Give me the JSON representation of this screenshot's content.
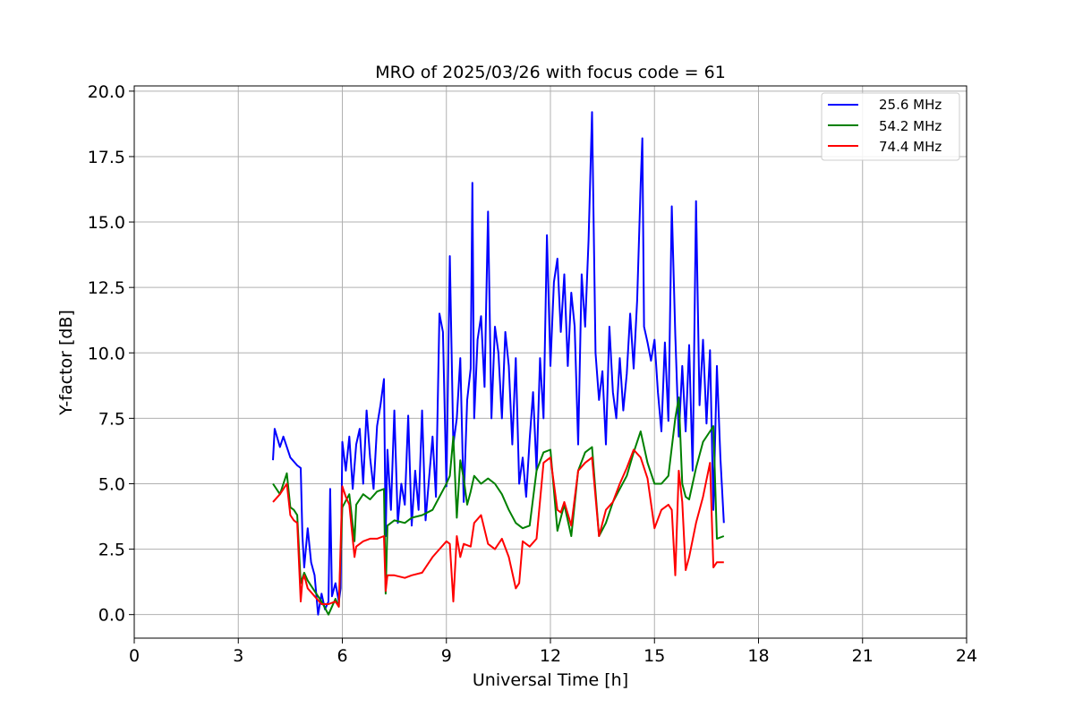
{
  "chart_data": {
    "type": "line",
    "title": "MRO of 2025/03/26 with focus code = 61",
    "xlabel": "Universal Time [h]",
    "ylabel": "Y-factor [dB]",
    "xlim": [
      0,
      24
    ],
    "ylim": [
      -0.9,
      20.2
    ],
    "xticks": [
      0,
      3,
      6,
      9,
      12,
      15,
      18,
      21,
      24
    ],
    "yticks": [
      0.0,
      2.5,
      5.0,
      7.5,
      10.0,
      12.5,
      15.0,
      17.5,
      20.0
    ],
    "xtick_labels": [
      "0",
      "3",
      "6",
      "9",
      "12",
      "15",
      "18",
      "21",
      "24"
    ],
    "ytick_labels": [
      "0.0",
      "2.5",
      "5.0",
      "7.5",
      "10.0",
      "12.5",
      "15.0",
      "17.5",
      "20.0"
    ],
    "grid": true,
    "legend_position": "top-right",
    "series": [
      {
        "name": "25.6 MHz",
        "color": "#0000ff",
        "x": [
          4.0,
          4.05,
          4.2,
          4.3,
          4.5,
          4.7,
          4.8,
          4.85,
          4.9,
          5.0,
          5.1,
          5.2,
          5.3,
          5.4,
          5.5,
          5.6,
          5.65,
          5.7,
          5.8,
          5.9,
          5.95,
          6.0,
          6.1,
          6.2,
          6.3,
          6.4,
          6.5,
          6.6,
          6.7,
          6.8,
          6.9,
          7.0,
          7.1,
          7.2,
          7.25,
          7.3,
          7.4,
          7.5,
          7.6,
          7.7,
          7.8,
          7.9,
          8.0,
          8.1,
          8.2,
          8.3,
          8.4,
          8.5,
          8.6,
          8.7,
          8.8,
          8.9,
          9.0,
          9.1,
          9.2,
          9.3,
          9.4,
          9.5,
          9.6,
          9.7,
          9.75,
          9.8,
          9.9,
          10.0,
          10.1,
          10.2,
          10.3,
          10.4,
          10.5,
          10.6,
          10.7,
          10.8,
          10.9,
          11.0,
          11.1,
          11.2,
          11.3,
          11.4,
          11.5,
          11.6,
          11.7,
          11.8,
          11.9,
          12.0,
          12.1,
          12.2,
          12.3,
          12.4,
          12.5,
          12.6,
          12.7,
          12.8,
          12.9,
          13.0,
          13.1,
          13.2,
          13.3,
          13.4,
          13.5,
          13.6,
          13.7,
          13.8,
          13.9,
          14.0,
          14.1,
          14.2,
          14.3,
          14.4,
          14.5,
          14.6,
          14.65,
          14.7,
          14.8,
          14.9,
          15.0,
          15.1,
          15.2,
          15.3,
          15.4,
          15.5,
          15.6,
          15.7,
          15.8,
          15.9,
          16.0,
          16.1,
          16.2,
          16.3,
          16.4,
          16.5,
          16.6,
          16.7,
          16.8,
          16.9,
          17.0
        ],
        "y": [
          5.9,
          7.1,
          6.4,
          6.8,
          6.0,
          5.7,
          5.6,
          3.0,
          1.8,
          3.3,
          2.0,
          1.5,
          0.0,
          0.8,
          0.2,
          0.5,
          4.8,
          0.7,
          1.2,
          0.5,
          1.0,
          6.6,
          5.5,
          6.8,
          4.8,
          6.5,
          7.1,
          5.0,
          7.8,
          6.0,
          4.8,
          7.2,
          8.0,
          9.0,
          3.0,
          6.3,
          4.0,
          7.8,
          3.5,
          5.0,
          4.2,
          7.6,
          3.4,
          5.5,
          4.0,
          7.8,
          3.6,
          5.2,
          6.8,
          4.5,
          11.5,
          10.8,
          4.9,
          13.7,
          6.5,
          7.5,
          9.8,
          4.3,
          8.2,
          9.4,
          16.5,
          7.5,
          10.5,
          11.4,
          8.7,
          15.4,
          7.5,
          11.0,
          10.0,
          7.5,
          10.8,
          9.5,
          6.5,
          9.8,
          5.0,
          6.0,
          4.5,
          6.7,
          8.5,
          5.5,
          9.8,
          7.5,
          14.5,
          9.5,
          12.7,
          13.6,
          10.8,
          13.0,
          9.5,
          12.3,
          11.0,
          6.5,
          13.0,
          11.0,
          14.3,
          19.2,
          10.0,
          8.2,
          9.3,
          6.5,
          11.0,
          8.5,
          7.5,
          9.8,
          7.8,
          9.2,
          11.5,
          9.4,
          12.0,
          16.4,
          18.2,
          11.0,
          10.4,
          9.7,
          10.5,
          8.5,
          7.0,
          10.4,
          7.4,
          15.6,
          10.7,
          6.8,
          9.5,
          7.0,
          10.3,
          5.5,
          15.8,
          8.0,
          10.5,
          7.3,
          10.1,
          4.0,
          9.5,
          6.0,
          3.5
        ]
      },
      {
        "name": "54.2 MHz",
        "color": "#008000",
        "x": [
          4.0,
          4.2,
          4.4,
          4.5,
          4.6,
          4.7,
          4.8,
          4.9,
          5.0,
          5.2,
          5.4,
          5.6,
          5.8,
          5.9,
          6.0,
          6.2,
          6.35,
          6.4,
          6.6,
          6.8,
          7.0,
          7.2,
          7.25,
          7.3,
          7.5,
          7.8,
          8.0,
          8.3,
          8.6,
          8.8,
          9.0,
          9.1,
          9.2,
          9.3,
          9.4,
          9.5,
          9.6,
          9.7,
          9.8,
          10.0,
          10.2,
          10.4,
          10.6,
          10.8,
          11.0,
          11.2,
          11.4,
          11.6,
          11.8,
          12.0,
          12.2,
          12.3,
          12.4,
          12.6,
          12.8,
          13.0,
          13.2,
          13.4,
          13.6,
          13.8,
          14.0,
          14.2,
          14.4,
          14.6,
          14.8,
          15.0,
          15.2,
          15.4,
          15.6,
          15.7,
          15.8,
          15.9,
          16.0,
          16.2,
          16.4,
          16.6,
          16.7,
          16.8,
          17.0
        ],
        "y": [
          5.0,
          4.6,
          5.4,
          4.1,
          4.0,
          3.8,
          1.2,
          1.6,
          1.3,
          0.9,
          0.5,
          0.0,
          0.6,
          0.3,
          4.1,
          4.6,
          2.8,
          4.2,
          4.6,
          4.4,
          4.7,
          4.8,
          0.8,
          3.4,
          3.6,
          3.5,
          3.7,
          3.8,
          4.0,
          4.5,
          5.0,
          5.3,
          6.8,
          3.7,
          5.9,
          5.2,
          4.2,
          4.7,
          5.3,
          5.0,
          5.2,
          5.0,
          4.6,
          4.0,
          3.5,
          3.3,
          3.4,
          5.5,
          6.2,
          6.3,
          3.2,
          3.7,
          4.2,
          3.0,
          5.5,
          6.2,
          6.4,
          3.0,
          3.5,
          4.3,
          4.8,
          5.3,
          6.2,
          7.0,
          5.8,
          5.0,
          5.0,
          5.3,
          7.5,
          8.3,
          5.0,
          4.5,
          4.4,
          5.6,
          6.6,
          7.0,
          7.2,
          2.9,
          3.0
        ]
      },
      {
        "name": "74.4 MHz",
        "color": "#ff0000",
        "x": [
          4.0,
          4.2,
          4.4,
          4.5,
          4.6,
          4.7,
          4.8,
          4.85,
          4.9,
          5.0,
          5.2,
          5.4,
          5.6,
          5.8,
          5.9,
          6.0,
          6.1,
          6.2,
          6.35,
          6.4,
          6.6,
          6.8,
          7.0,
          7.2,
          7.25,
          7.3,
          7.5,
          7.8,
          8.0,
          8.3,
          8.6,
          8.8,
          9.0,
          9.1,
          9.2,
          9.3,
          9.4,
          9.5,
          9.7,
          9.8,
          10.0,
          10.2,
          10.4,
          10.6,
          10.8,
          11.0,
          11.1,
          11.2,
          11.4,
          11.6,
          11.8,
          12.0,
          12.2,
          12.3,
          12.4,
          12.6,
          12.8,
          13.0,
          13.2,
          13.4,
          13.6,
          13.8,
          14.0,
          14.2,
          14.4,
          14.6,
          14.8,
          15.0,
          15.2,
          15.4,
          15.5,
          15.6,
          15.7,
          15.8,
          15.9,
          16.0,
          16.2,
          16.4,
          16.6,
          16.7,
          16.8,
          17.0
        ],
        "y": [
          4.3,
          4.6,
          5.0,
          3.8,
          3.6,
          3.5,
          0.5,
          1.3,
          1.5,
          1.0,
          0.7,
          0.4,
          0.4,
          0.5,
          0.3,
          4.9,
          4.5,
          4.2,
          2.2,
          2.6,
          2.8,
          2.9,
          2.9,
          3.0,
          0.9,
          1.5,
          1.5,
          1.4,
          1.5,
          1.6,
          2.2,
          2.5,
          2.8,
          2.7,
          0.5,
          3.0,
          2.2,
          2.7,
          2.6,
          3.5,
          3.8,
          2.7,
          2.5,
          2.9,
          2.2,
          1.0,
          1.2,
          2.8,
          2.6,
          2.9,
          5.8,
          6.0,
          4.0,
          3.9,
          4.3,
          3.4,
          5.5,
          5.8,
          6.0,
          3.0,
          4.0,
          4.3,
          5.0,
          5.6,
          6.3,
          6.0,
          5.2,
          3.3,
          4.0,
          4.2,
          4.0,
          1.5,
          5.5,
          4.3,
          1.7,
          2.2,
          3.5,
          4.5,
          5.8,
          1.8,
          2.0,
          2.0
        ]
      }
    ]
  }
}
